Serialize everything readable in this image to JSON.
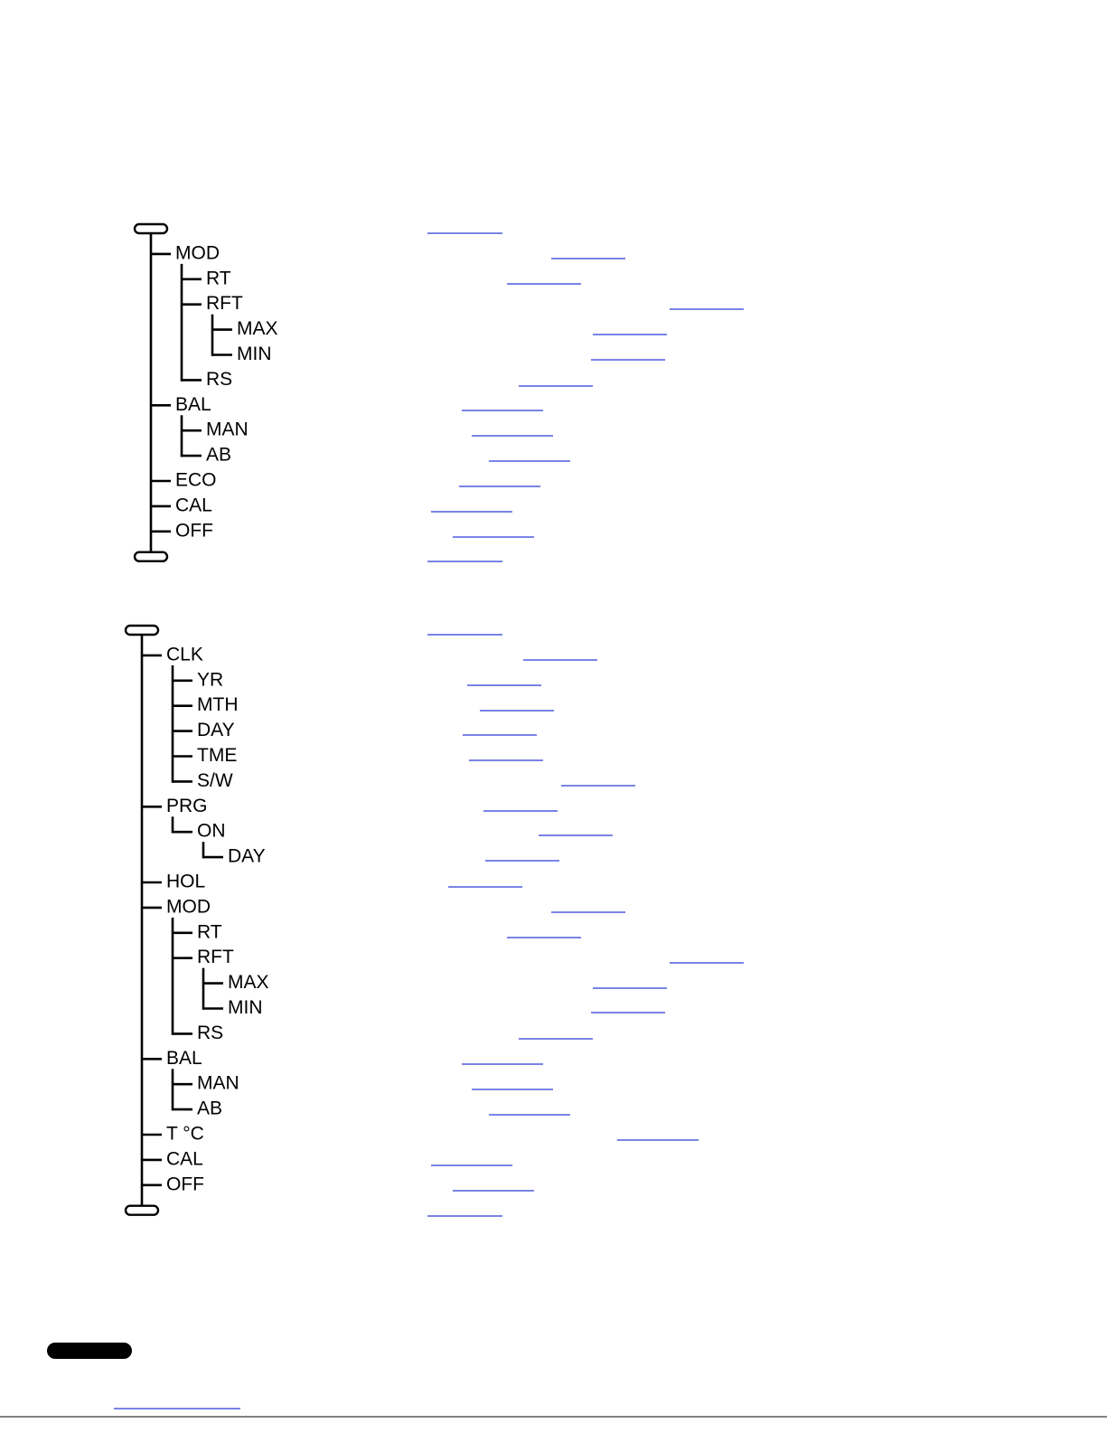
{
  "tree1": {
    "items": [
      {
        "label": "MOD",
        "children": [
          {
            "label": "RT"
          },
          {
            "label": "RFT",
            "children": [
              {
                "label": "MAX"
              },
              {
                "label": "MIN"
              }
            ]
          },
          {
            "label": "RS"
          }
        ]
      },
      {
        "label": "BAL",
        "children": [
          {
            "label": "MAN"
          },
          {
            "label": "AB"
          }
        ]
      },
      {
        "label": "ECO"
      },
      {
        "label": "CAL"
      },
      {
        "label": "OFF"
      }
    ]
  },
  "tree2": {
    "items": [
      {
        "label": "CLK",
        "children": [
          {
            "label": "YR"
          },
          {
            "label": "MTH"
          },
          {
            "label": "DAY"
          },
          {
            "label": "TME"
          },
          {
            "label": "S/W"
          }
        ]
      },
      {
        "label": "PRG",
        "children": [
          {
            "label": "ON",
            "children": [
              {
                "label": "DAY"
              }
            ]
          }
        ]
      },
      {
        "label": "HOL"
      },
      {
        "label": "MOD",
        "children": [
          {
            "label": "RT"
          },
          {
            "label": "RFT",
            "children": [
              {
                "label": "MAX"
              },
              {
                "label": "MIN"
              }
            ]
          },
          {
            "label": "RS"
          }
        ]
      },
      {
        "label": "BAL",
        "children": [
          {
            "label": "MAN"
          },
          {
            "label": "AB"
          }
        ]
      },
      {
        "label": "T °C"
      },
      {
        "label": "CAL"
      },
      {
        "label": "OFF"
      }
    ]
  }
}
